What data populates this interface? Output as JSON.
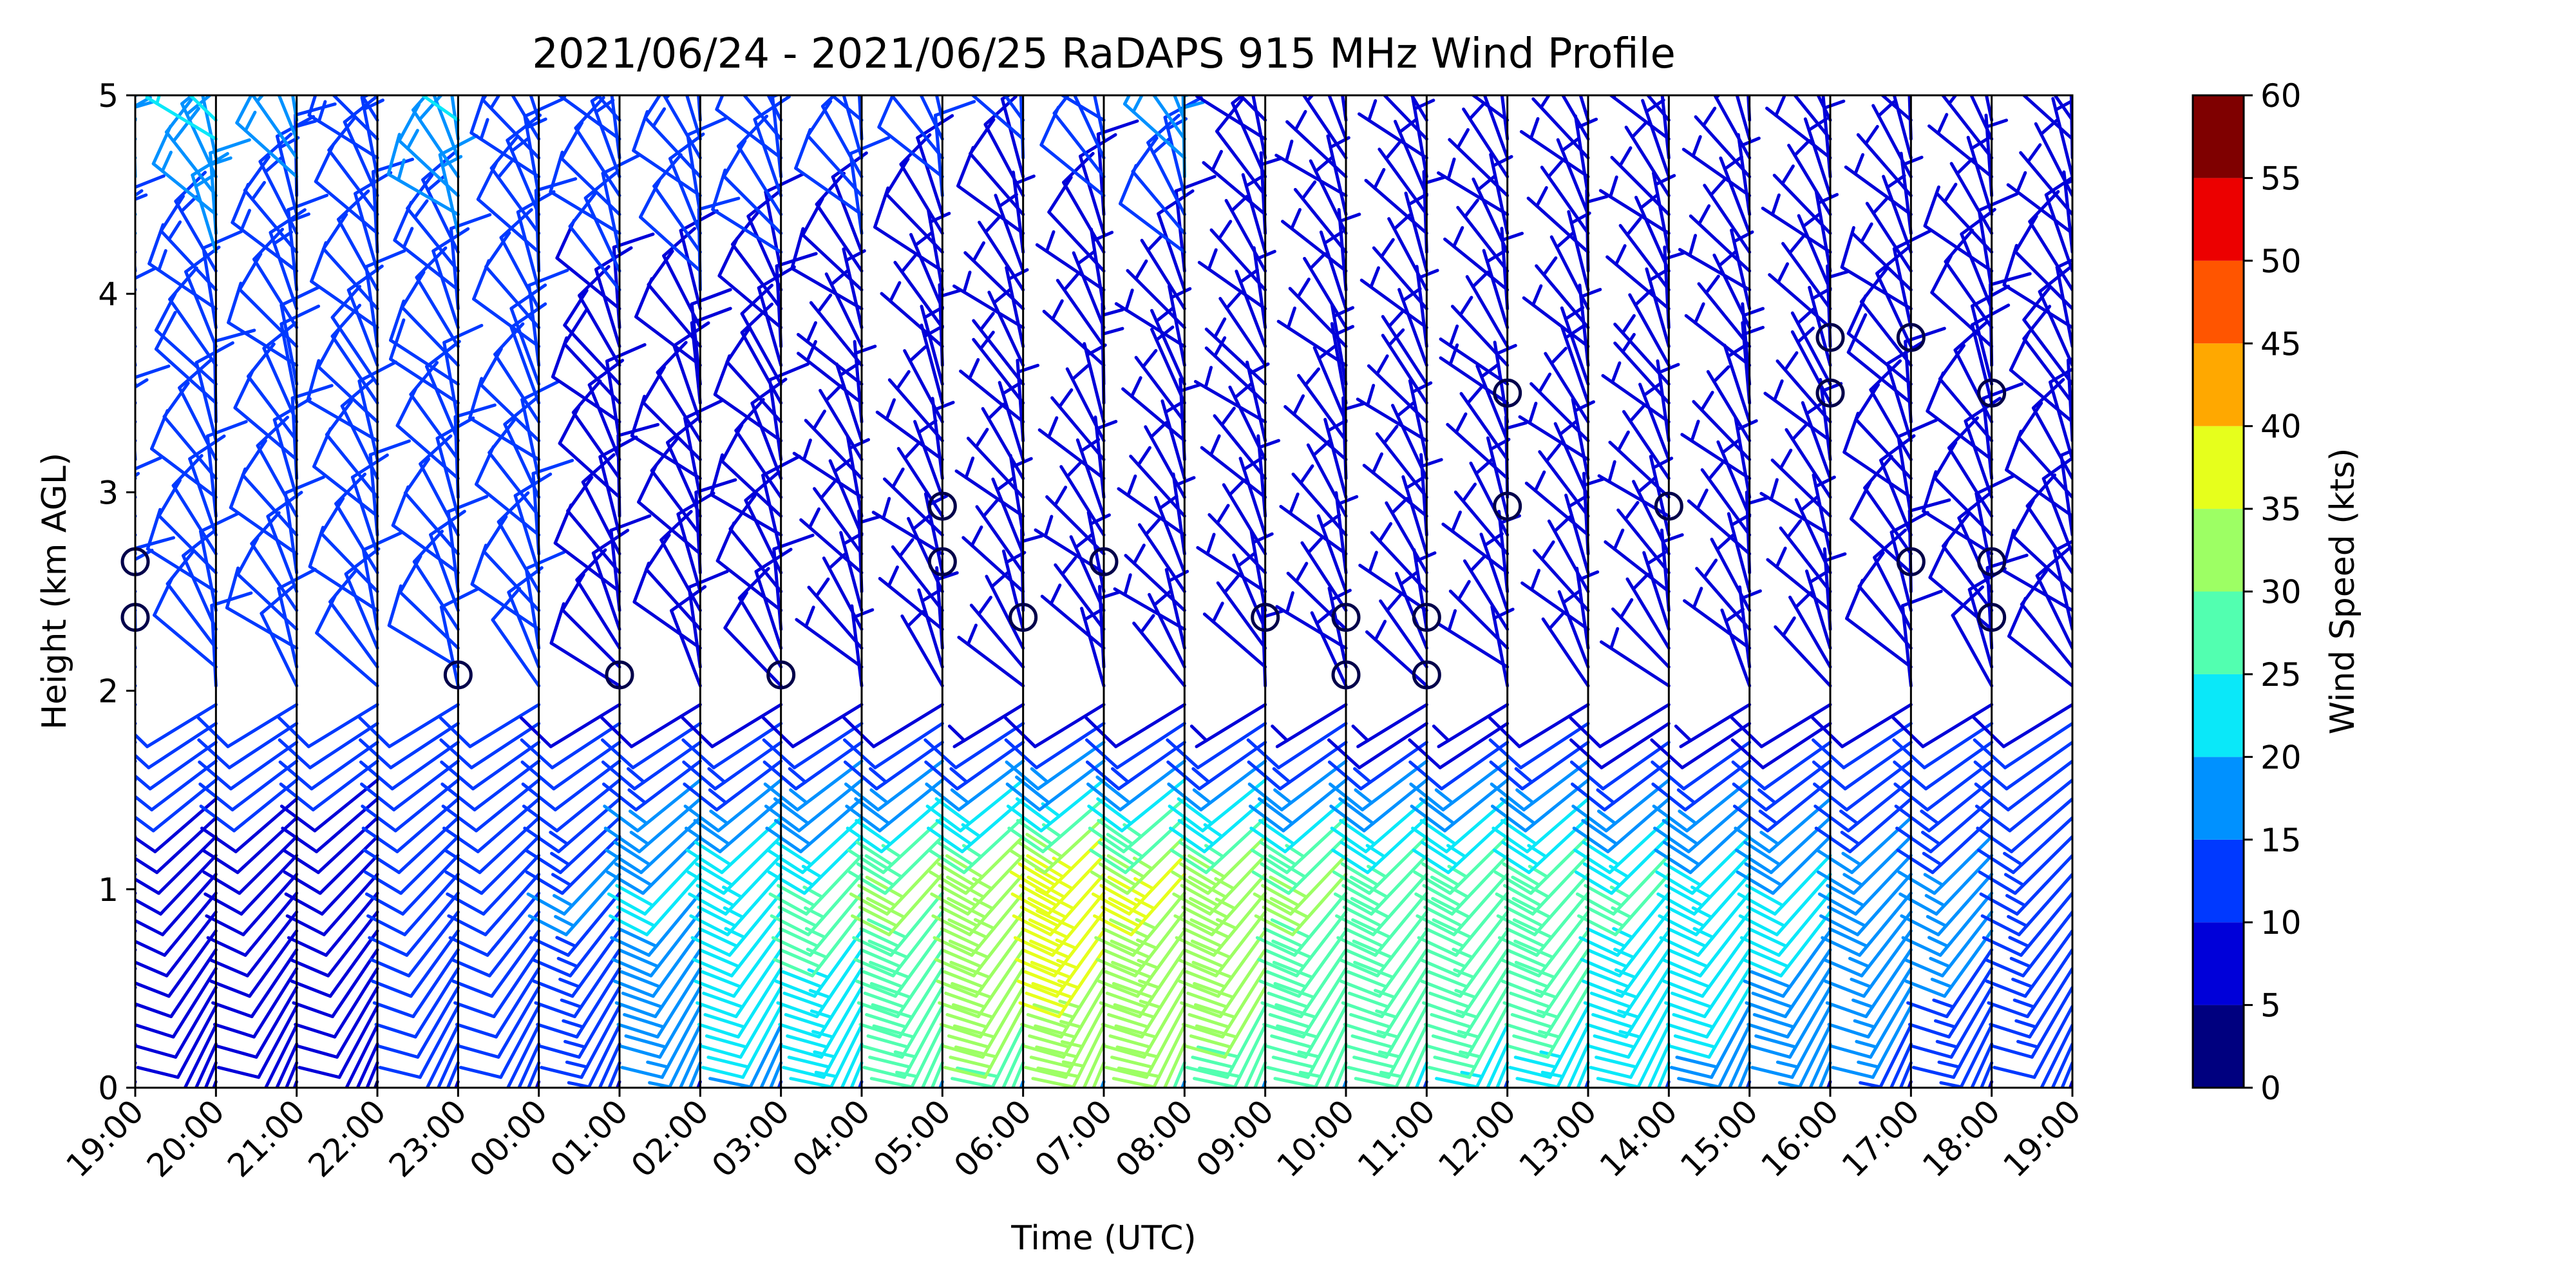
{
  "chart_data": {
    "type": "wind_barb_profile",
    "title": "2021/06/24 - 2021/06/25 RaDAPS 915 MHz Wind Profile",
    "xlabel": "Time (UTC)",
    "ylabel": "Height (km AGL)",
    "ylim": [
      0,
      5
    ],
    "y_ticks": [
      "0",
      "1",
      "2",
      "3",
      "4",
      "5"
    ],
    "x_ticks": [
      "19:00",
      "20:00",
      "21:00",
      "22:00",
      "23:00",
      "00:00",
      "01:00",
      "02:00",
      "03:00",
      "04:00",
      "05:00",
      "06:00",
      "07:00",
      "08:00",
      "09:00",
      "10:00",
      "11:00",
      "12:00",
      "13:00",
      "14:00",
      "15:00",
      "16:00",
      "17:00",
      "18:00",
      "19:00"
    ],
    "colorbar": {
      "label": "Wind Speed (kts)",
      "ticks": [
        "0",
        "5",
        "10",
        "15",
        "20",
        "25",
        "30",
        "35",
        "40",
        "45",
        "50",
        "55",
        "60"
      ],
      "colors": [
        "#00007f",
        "#0000d9",
        "#0039ff",
        "#0091ff",
        "#0ae8f9",
        "#52ffb0",
        "#9dff64",
        "#e6ff1c",
        "#ffa800",
        "#ff5500",
        "#ec0000",
        "#7f0000"
      ]
    },
    "calm_markers": [
      {
        "time": "23:00",
        "height_km": 2.08
      },
      {
        "time": "01:00",
        "height_km": 2.08
      },
      {
        "time": "03:00",
        "height_km": 2.08
      },
      {
        "time": "05:00",
        "height_km": 2.65
      },
      {
        "time": "05:00",
        "height_km": 2.93
      },
      {
        "time": "06:00",
        "height_km": 2.37
      },
      {
        "time": "07:00",
        "height_km": 2.65
      },
      {
        "time": "09:00",
        "height_km": 2.37
      },
      {
        "time": "10:00",
        "height_km": 2.08
      },
      {
        "time": "10:00",
        "height_km": 2.37
      },
      {
        "time": "11:00",
        "height_km": 2.08
      },
      {
        "time": "11:00",
        "height_km": 2.37
      },
      {
        "time": "12:00",
        "height_km": 2.93
      },
      {
        "time": "12:00",
        "height_km": 3.5
      },
      {
        "time": "14:00",
        "height_km": 2.93
      },
      {
        "time": "16:00",
        "height_km": 3.5
      },
      {
        "time": "16:00",
        "height_km": 3.78
      },
      {
        "time": "17:00",
        "height_km": 2.65
      },
      {
        "time": "17:00",
        "height_km": 3.78
      },
      {
        "time": "18:00",
        "height_km": 2.37
      },
      {
        "time": "18:00",
        "height_km": 2.65
      },
      {
        "time": "18:00",
        "height_km": 3.5
      },
      {
        "time": "19:00",
        "height_km": 2.37
      },
      {
        "time": "19:00",
        "height_km": 2.65
      }
    ],
    "speed_profile_by_hour": [
      {
        "time": "19:00",
        "low_kts": 9,
        "jet_kts": 10,
        "upper_kts": 12,
        "top_kts": 18
      },
      {
        "time": "20:00",
        "low_kts": 9,
        "jet_kts": 9,
        "upper_kts": 12,
        "top_kts": 21
      },
      {
        "time": "21:00",
        "low_kts": 9,
        "jet_kts": 9,
        "upper_kts": 12,
        "top_kts": 16
      },
      {
        "time": "22:00",
        "low_kts": 8,
        "jet_kts": 9,
        "upper_kts": 11,
        "top_kts": 13
      },
      {
        "time": "23:00",
        "low_kts": 10,
        "jet_kts": 11,
        "upper_kts": 11,
        "top_kts": 20
      },
      {
        "time": "00:00",
        "low_kts": 11,
        "jet_kts": 12,
        "upper_kts": 11,
        "top_kts": 14
      },
      {
        "time": "01:00",
        "low_kts": 13,
        "jet_kts": 15,
        "upper_kts": 9,
        "top_kts": 14
      },
      {
        "time": "02:00",
        "low_kts": 15,
        "jet_kts": 20,
        "upper_kts": 9,
        "top_kts": 14
      },
      {
        "time": "03:00",
        "low_kts": 18,
        "jet_kts": 23,
        "upper_kts": 8,
        "top_kts": 13
      },
      {
        "time": "04:00",
        "low_kts": 21,
        "jet_kts": 26,
        "upper_kts": 7,
        "top_kts": 13
      },
      {
        "time": "05:00",
        "low_kts": 25,
        "jet_kts": 30,
        "upper_kts": 6,
        "top_kts": 12
      },
      {
        "time": "06:00",
        "low_kts": 28,
        "jet_kts": 33,
        "upper_kts": 5,
        "top_kts": 11
      },
      {
        "time": "07:00",
        "low_kts": 30,
        "jet_kts": 38,
        "upper_kts": 5,
        "top_kts": 13
      },
      {
        "time": "08:00",
        "low_kts": 29,
        "jet_kts": 35,
        "upper_kts": 5,
        "top_kts": 18
      },
      {
        "time": "09:00",
        "low_kts": 27,
        "jet_kts": 33,
        "upper_kts": 5,
        "top_kts": 9
      },
      {
        "time": "10:00",
        "low_kts": 25,
        "jet_kts": 30,
        "upper_kts": 5,
        "top_kts": 6
      },
      {
        "time": "11:00",
        "low_kts": 24,
        "jet_kts": 29,
        "upper_kts": 5,
        "top_kts": 6
      },
      {
        "time": "12:00",
        "low_kts": 23,
        "jet_kts": 28,
        "upper_kts": 5,
        "top_kts": 5
      },
      {
        "time": "13:00",
        "low_kts": 22,
        "jet_kts": 29,
        "upper_kts": 6,
        "top_kts": 5
      },
      {
        "time": "14:00",
        "low_kts": 20,
        "jet_kts": 25,
        "upper_kts": 6,
        "top_kts": 5
      },
      {
        "time": "15:00",
        "low_kts": 17,
        "jet_kts": 23,
        "upper_kts": 6,
        "top_kts": 5
      },
      {
        "time": "16:00",
        "low_kts": 15,
        "jet_kts": 21,
        "upper_kts": 7,
        "top_kts": 5
      },
      {
        "time": "17:00",
        "low_kts": 13,
        "jet_kts": 18,
        "upper_kts": 8,
        "top_kts": 5
      },
      {
        "time": "18:00",
        "low_kts": 12,
        "jet_kts": 16,
        "upper_kts": 9,
        "top_kts": 5
      },
      {
        "time": "19:00",
        "low_kts": 11,
        "jet_kts": 14,
        "upper_kts": 9,
        "top_kts": 5
      }
    ]
  }
}
